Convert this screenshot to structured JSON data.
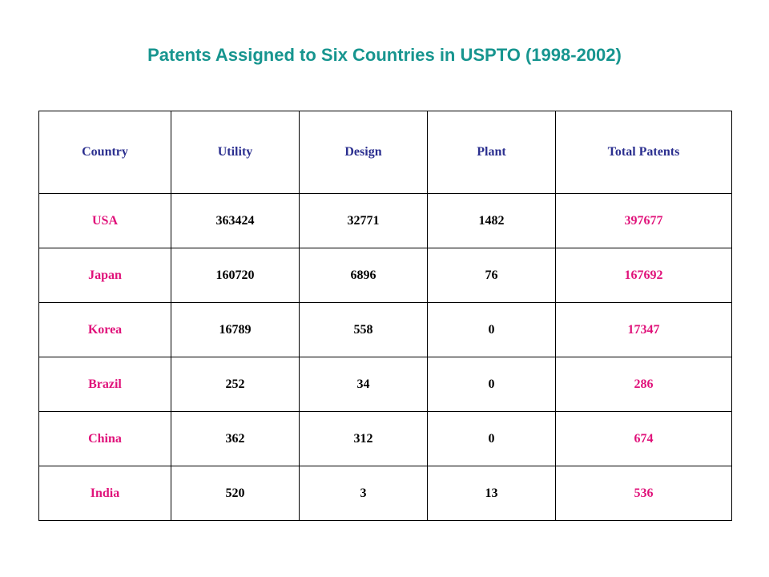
{
  "title": "Patents Assigned to Six Countries in USPTO (1998-2002)",
  "colors": {
    "title": "#17958f",
    "header_text": "#2b2f8f",
    "highlight_text": "#e0127a",
    "body_text": "#000000",
    "border": "#000000"
  },
  "table": {
    "headers": [
      "Country",
      "Utility",
      "Design",
      "Plant",
      "Total Patents"
    ],
    "rows": [
      {
        "country": "USA",
        "utility": "363424",
        "design": "32771",
        "plant": "1482",
        "total": "397677"
      },
      {
        "country": "Japan",
        "utility": "160720",
        "design": "6896",
        "plant": "76",
        "total": "167692"
      },
      {
        "country": "Korea",
        "utility": "16789",
        "design": "558",
        "plant": "0",
        "total": "17347"
      },
      {
        "country": "Brazil",
        "utility": "252",
        "design": "34",
        "plant": "0",
        "total": "286"
      },
      {
        "country": "China",
        "utility": "362",
        "design": "312",
        "plant": "0",
        "total": "674"
      },
      {
        "country": "India",
        "utility": "520",
        "design": "3",
        "plant": "13",
        "total": "536"
      }
    ]
  }
}
